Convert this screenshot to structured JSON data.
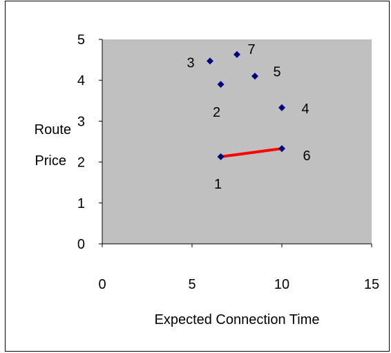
{
  "chart_data": {
    "type": "scatter",
    "title": "",
    "xlabel": "Expected Connection Time",
    "ylabel_lines": [
      "Route",
      "Price"
    ],
    "xlim": [
      0,
      15
    ],
    "ylim": [
      0,
      5
    ],
    "xticks": [
      0,
      5,
      10,
      15
    ],
    "yticks": [
      0,
      1,
      2,
      3,
      4,
      5
    ],
    "grid": false,
    "legend": "none",
    "colors": {
      "plot_background": "#c0c0c0",
      "marker": "#000080",
      "line": "#ff0000"
    },
    "points": [
      {
        "label": "1",
        "x": 6.6,
        "y": 2.13
      },
      {
        "label": "2",
        "x": 6.6,
        "y": 3.9
      },
      {
        "label": "3",
        "x": 6.0,
        "y": 4.47
      },
      {
        "label": "4",
        "x": 10.0,
        "y": 3.33
      },
      {
        "label": "5",
        "x": 8.5,
        "y": 4.1
      },
      {
        "label": "6",
        "x": 10.0,
        "y": 2.33
      },
      {
        "label": "7",
        "x": 7.5,
        "y": 4.63
      }
    ],
    "segments": [
      {
        "from": "1",
        "to": "6"
      }
    ]
  }
}
